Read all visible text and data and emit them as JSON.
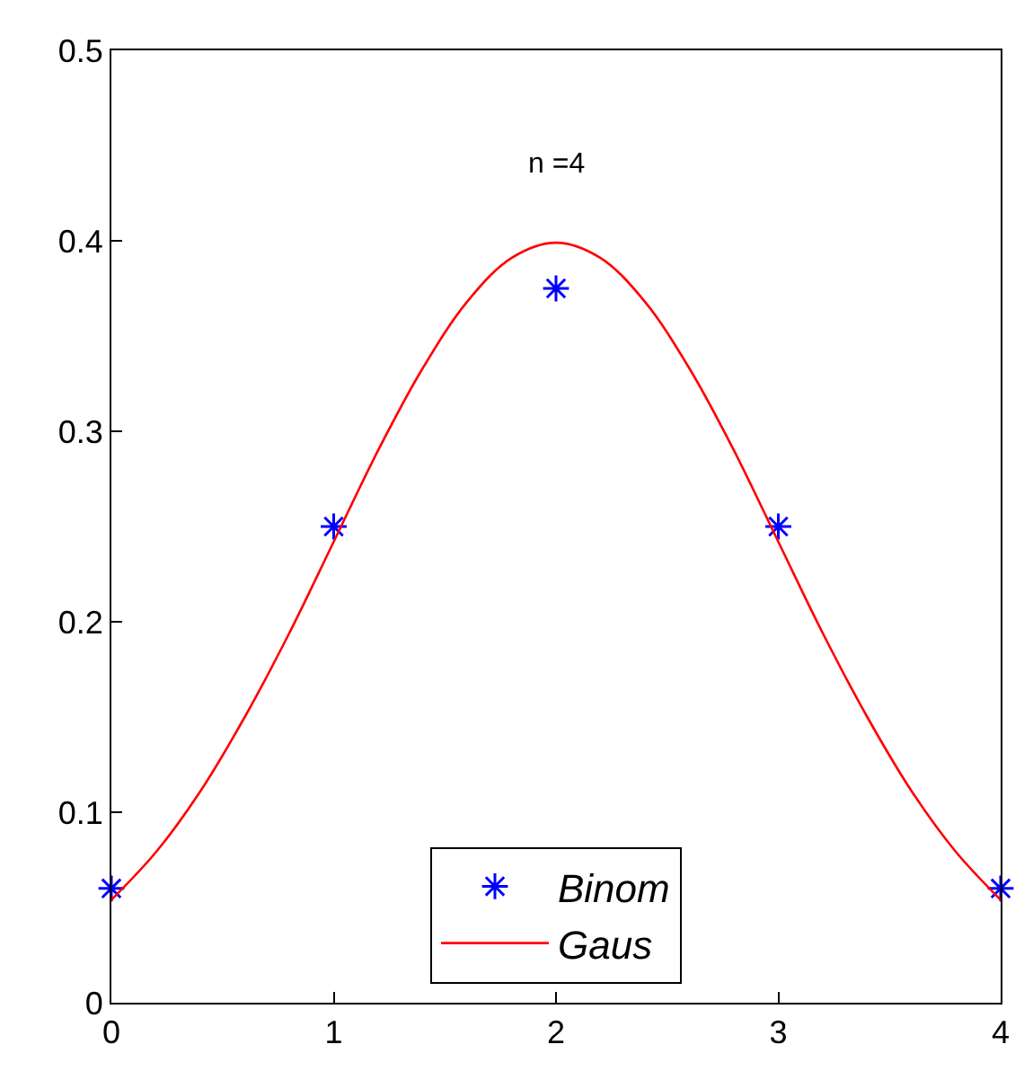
{
  "chart_data": {
    "type": "scatter",
    "xlim": [
      0,
      4
    ],
    "xticks": [
      0,
      1,
      2,
      3,
      4
    ],
    "ylim": [
      0,
      0.5
    ],
    "yticks": [
      0,
      0.1,
      0.2,
      0.3,
      0.4,
      0.5
    ],
    "legend": "bottom",
    "annotations": [
      "n =4"
    ],
    "series": [
      {
        "name": "Binom",
        "marker": "cross",
        "color": "#0000ff",
        "x": [
          0,
          1,
          2,
          3,
          4
        ],
        "values": [
          0.06,
          0.25,
          0.375,
          0.25,
          0.06
        ]
      },
      {
        "name": "Gaus",
        "type": "line",
        "marker": "none",
        "line_style": "solid",
        "color": "#ff0000",
        "x": [
          0,
          0.2,
          0.4,
          0.6,
          0.8,
          1.0,
          1.2,
          1.4,
          1.6,
          1.8,
          2.0,
          2.2,
          2.4,
          2.6,
          2.8,
          3.0,
          3.2,
          3.4,
          3.6,
          3.8,
          4.0
        ],
        "values": [
          0.054,
          0.079,
          0.111,
          0.15,
          0.194,
          0.242,
          0.29,
          0.333,
          0.368,
          0.391,
          0.399,
          0.391,
          0.368,
          0.333,
          0.29,
          0.242,
          0.194,
          0.15,
          0.111,
          0.079,
          0.054
        ]
      }
    ]
  }
}
